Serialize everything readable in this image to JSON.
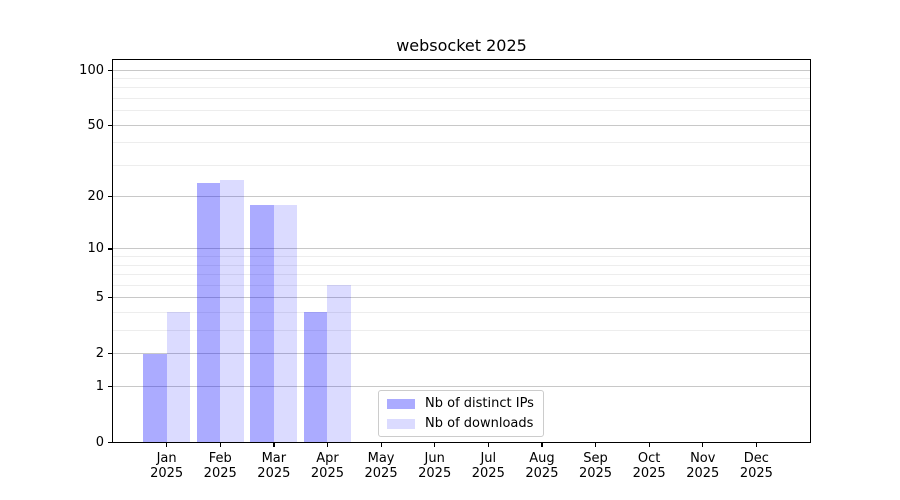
{
  "title": "websocket 2025",
  "chart_data": {
    "type": "bar",
    "title": "websocket 2025",
    "categories": [
      "Jan",
      "Feb",
      "Mar",
      "Apr",
      "May",
      "Jun",
      "Jul",
      "Aug",
      "Sep",
      "Oct",
      "Nov",
      "Dec"
    ],
    "x_year_label": "2025",
    "series": [
      {
        "name": "Nb of distinct IPs",
        "color": "rgba(0,0,255,0.33)",
        "values": [
          2,
          24,
          18,
          4,
          0,
          0,
          0,
          0,
          0,
          0,
          0,
          0
        ]
      },
      {
        "name": "Nb of downloads",
        "color": "rgba(0,0,255,0.14)",
        "values": [
          4,
          25,
          18,
          6,
          0,
          0,
          0,
          0,
          0,
          0,
          0,
          0
        ]
      }
    ],
    "yscale": "log1p",
    "ylim": [
      0,
      115
    ],
    "yticks_major": [
      0,
      1,
      2,
      5,
      10,
      20,
      50,
      100
    ],
    "yticks_minor": [
      3,
      4,
      6,
      7,
      8,
      9,
      30,
      40,
      60,
      70,
      80,
      90
    ],
    "grid": true,
    "legend_position": "lower center",
    "colors": {
      "grid_major": "#c8c8c8",
      "grid_minor": "#ededed",
      "spine": "#000000",
      "legend_border": "#cccccc"
    }
  }
}
